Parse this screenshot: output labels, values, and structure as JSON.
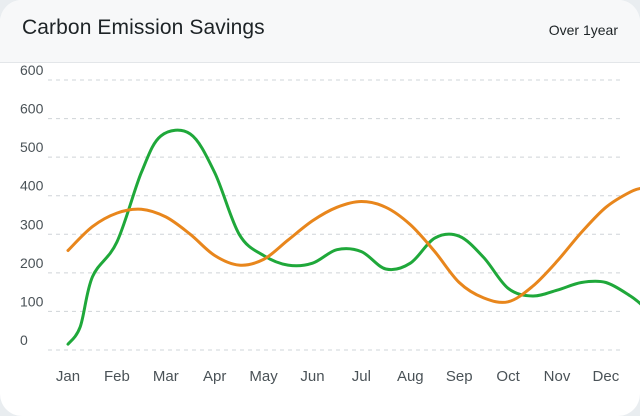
{
  "header": {
    "title": "Carbon Emission Savings",
    "period": "Over 1year"
  },
  "colors": {
    "series_green": "#1fa83a",
    "series_orange": "#e8861c",
    "grid": "#cfd4d8",
    "text": "#4a5257"
  },
  "chart_data": {
    "type": "line",
    "title": "Carbon Emission Savings",
    "xlabel": "",
    "ylabel": "",
    "categories": [
      "Jan",
      "Feb",
      "Mar",
      "Apr",
      "May",
      "Jun",
      "Jul",
      "Aug",
      "Sep",
      "Oct",
      "Nov",
      "Dec"
    ],
    "y_tick_labels": [
      "0",
      "100",
      "200",
      "300",
      "400",
      "500",
      "600",
      "600"
    ],
    "ylim": [
      0,
      700
    ],
    "grid": true,
    "smooth": true,
    "series": [
      {
        "color": "#1fa83a",
        "points": [
          [
            0.0,
            15
          ],
          [
            0.25,
            60
          ],
          [
            0.5,
            190
          ],
          [
            1.0,
            280
          ],
          [
            1.5,
            460
          ],
          [
            1.9,
            555
          ],
          [
            2.5,
            560
          ],
          [
            3.0,
            460
          ],
          [
            3.5,
            300
          ],
          [
            4.0,
            245
          ],
          [
            4.5,
            220
          ],
          [
            5.0,
            225
          ],
          [
            5.5,
            260
          ],
          [
            6.0,
            255
          ],
          [
            6.5,
            210
          ],
          [
            7.0,
            225
          ],
          [
            7.5,
            290
          ],
          [
            8.0,
            295
          ],
          [
            8.5,
            240
          ],
          [
            9.0,
            160
          ],
          [
            9.5,
            140
          ],
          [
            10.0,
            155
          ],
          [
            10.5,
            175
          ],
          [
            11.0,
            175
          ],
          [
            11.5,
            140
          ],
          [
            11.75,
            115
          ]
        ]
      },
      {
        "color": "#e8861c",
        "points": [
          [
            0.0,
            258
          ],
          [
            0.5,
            320
          ],
          [
            1.0,
            355
          ],
          [
            1.5,
            365
          ],
          [
            2.0,
            345
          ],
          [
            2.5,
            300
          ],
          [
            3.0,
            245
          ],
          [
            3.5,
            220
          ],
          [
            4.0,
            235
          ],
          [
            4.5,
            285
          ],
          [
            5.0,
            335
          ],
          [
            5.5,
            370
          ],
          [
            6.0,
            385
          ],
          [
            6.5,
            370
          ],
          [
            7.0,
            325
          ],
          [
            7.5,
            255
          ],
          [
            8.0,
            175
          ],
          [
            8.5,
            135
          ],
          [
            9.0,
            125
          ],
          [
            9.5,
            165
          ],
          [
            10.0,
            230
          ],
          [
            10.5,
            305
          ],
          [
            11.0,
            370
          ],
          [
            11.5,
            410
          ],
          [
            11.75,
            420
          ]
        ]
      }
    ]
  }
}
